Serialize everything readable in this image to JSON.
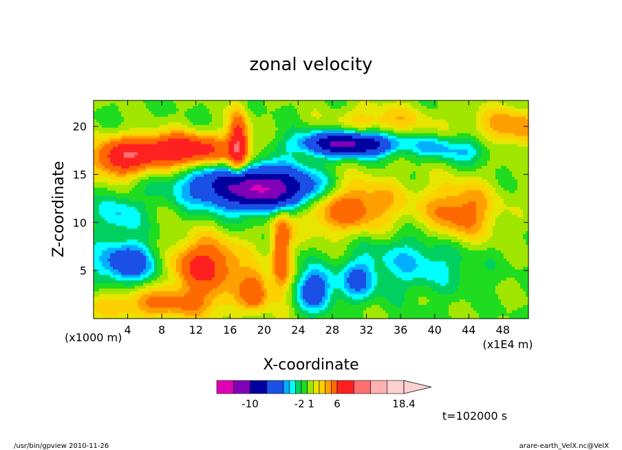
{
  "chart_data": {
    "type": "heatmap",
    "title": "zonal velocity",
    "xlabel": "X-coordinate",
    "ylabel": "Z-coordinate",
    "x_unit_left": "(x1000 m)",
    "x_unit_right": "(x1E4 m)",
    "xlim": [
      0,
      51
    ],
    "ylim": [
      0,
      22.7
    ],
    "x_ticks": [
      4,
      8,
      12,
      16,
      20,
      24,
      28,
      32,
      36,
      40,
      44,
      48
    ],
    "y_ticks": [
      5,
      10,
      15,
      20
    ],
    "colorbar": {
      "levels": [
        -16,
        -13,
        -10,
        -7,
        -4,
        -3,
        -2,
        -1,
        0,
        1,
        2,
        3,
        4,
        6,
        9,
        12,
        15,
        18.4
      ],
      "colors": [
        "#e000b4",
        "#8000b8",
        "#0000a0",
        "#1a50e6",
        "#00b0ff",
        "#00ffff",
        "#00d060",
        "#20dc20",
        "#a0e600",
        "#e6e600",
        "#ffd000",
        "#ffa000",
        "#ff6a00",
        "#ff2020",
        "#ff7070",
        "#ffb0b0",
        "#ffd0d0"
      ],
      "labels": [
        "-10",
        "-2",
        "1",
        "6",
        "18.4"
      ],
      "label_values": [
        -10,
        -2,
        1,
        6,
        18.4
      ]
    },
    "features": [
      {
        "x": 20,
        "z": 13.5,
        "sx": 5.5,
        "sz": 1.6,
        "a": -14,
        "tilt": -0.12
      },
      {
        "x": 30,
        "z": 18.2,
        "sx": 4.0,
        "sz": 0.9,
        "a": -11,
        "tilt": 0
      },
      {
        "x": 10,
        "z": 17.5,
        "sx": 4.5,
        "sz": 1.2,
        "a": 9,
        "tilt": 0
      },
      {
        "x": 3,
        "z": 16.5,
        "sx": 2.5,
        "sz": 1.4,
        "a": 6,
        "tilt": 0
      },
      {
        "x": 13,
        "z": 5.5,
        "sx": 3.0,
        "sz": 2.0,
        "a": 7,
        "tilt": 0
      },
      {
        "x": 4,
        "z": 5.8,
        "sx": 2.8,
        "sz": 1.5,
        "a": -6,
        "tilt": 0
      },
      {
        "x": 3,
        "z": 10.8,
        "sx": 2.0,
        "sz": 1.5,
        "a": -3,
        "tilt": 0
      },
      {
        "x": 29,
        "z": 12.0,
        "sx": 4.5,
        "sz": 2.0,
        "a": 7,
        "tilt": 0
      },
      {
        "x": 43,
        "z": 11.0,
        "sx": 3.0,
        "sz": 2.2,
        "a": 5,
        "tilt": 0
      },
      {
        "x": 38,
        "z": 6.0,
        "sx": 4.5,
        "sz": 2.2,
        "a": -3,
        "tilt": 0
      },
      {
        "x": 26,
        "z": 3.0,
        "sx": 1.5,
        "sz": 1.5,
        "a": -6,
        "tilt": 0
      },
      {
        "x": 31,
        "z": 4.0,
        "sx": 1.5,
        "sz": 1.5,
        "a": -4,
        "tilt": 0
      },
      {
        "x": 19,
        "z": 3.0,
        "sx": 1.2,
        "sz": 1.5,
        "a": 5,
        "tilt": 0
      },
      {
        "x": 22,
        "z": 7.0,
        "sx": 0.8,
        "sz": 3.0,
        "a": 6,
        "tilt": 0
      },
      {
        "x": 8,
        "z": 1.5,
        "sx": 6.0,
        "sz": 1.2,
        "a": 4,
        "tilt": 0
      },
      {
        "x": 44,
        "z": 17.5,
        "sx": 2.0,
        "sz": 1.0,
        "a": -3,
        "tilt": 0
      },
      {
        "x": 40,
        "z": 17.8,
        "sx": 1.5,
        "sz": 0.8,
        "a": -3,
        "tilt": 0
      },
      {
        "x": 49,
        "z": 20.0,
        "sx": 3.0,
        "sz": 1.5,
        "a": 4,
        "tilt": 0
      },
      {
        "x": 34,
        "z": 20.5,
        "sx": 4.0,
        "sz": 1.2,
        "a": 3,
        "tilt": 0
      },
      {
        "x": 17,
        "z": 18.0,
        "sx": 0.8,
        "sz": 2.5,
        "a": 8,
        "tilt": 0
      }
    ]
  },
  "colorbar_labels": [
    "-10",
    "-2 1",
    "6",
    "18.4"
  ],
  "time_label": "t=102000 s",
  "footer_left": "/usr/bin/gpview   2010-11-26",
  "footer_right": "arare-earth_VelX.nc@VelX"
}
